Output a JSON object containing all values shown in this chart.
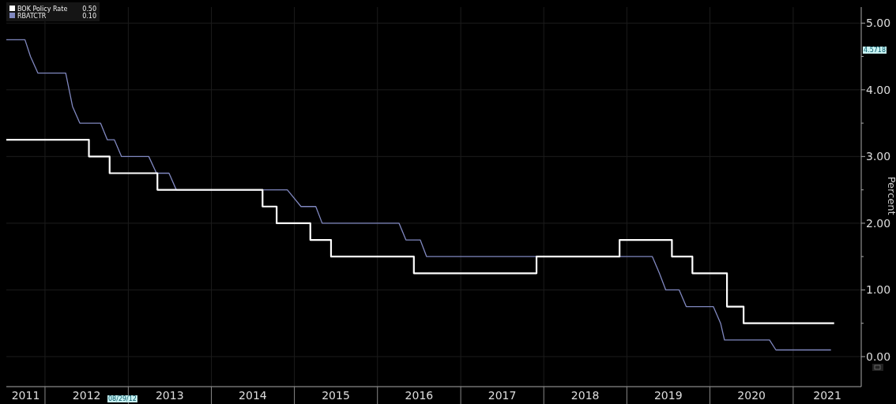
{
  "chart_data": {
    "type": "line",
    "ylabel": "Percent",
    "legend": "top left",
    "grid": true,
    "line_style": "solid",
    "xlim": [
      "2011-07-15",
      "2021-10-27"
    ],
    "xticks": [
      {
        "value": "2011-10-08",
        "label": "2011"
      },
      {
        "value": "2012-01-01",
        "label": null
      },
      {
        "value": "2012-07-02",
        "label": "2012"
      },
      {
        "value": "2013-01-01",
        "label": null
      },
      {
        "value": "2013-07-02",
        "label": "2013"
      },
      {
        "value": "2014-01-01",
        "label": null
      },
      {
        "value": "2014-07-02",
        "label": "2014"
      },
      {
        "value": "2015-01-01",
        "label": null
      },
      {
        "value": "2015-07-02",
        "label": "2015"
      },
      {
        "value": "2016-01-01",
        "label": null
      },
      {
        "value": "2016-07-02",
        "label": "2016"
      },
      {
        "value": "2017-01-01",
        "label": null
      },
      {
        "value": "2017-07-02",
        "label": "2017"
      },
      {
        "value": "2018-01-01",
        "label": null
      },
      {
        "value": "2018-07-02",
        "label": "2018"
      },
      {
        "value": "2019-01-01",
        "label": null
      },
      {
        "value": "2019-07-02",
        "label": "2019"
      },
      {
        "value": "2020-01-01",
        "label": null
      },
      {
        "value": "2020-07-02",
        "label": "2020"
      },
      {
        "value": "2021-01-01",
        "label": null
      },
      {
        "value": "2021-05-31",
        "label": "2021"
      }
    ],
    "ylim": [
      -0.45,
      5.24
    ],
    "yticks": [
      {
        "value": 0,
        "label": "0.00"
      },
      {
        "value": 0.5,
        "label": null
      },
      {
        "value": 1,
        "label": "1.00"
      },
      {
        "value": 1.5,
        "label": null
      },
      {
        "value": 2,
        "label": "2.00"
      },
      {
        "value": 2.5,
        "label": null
      },
      {
        "value": 3,
        "label": "3.00"
      },
      {
        "value": 3.5,
        "label": null
      },
      {
        "value": 4,
        "label": "4.00"
      },
      {
        "value": 4.5,
        "label": null
      },
      {
        "value": 5,
        "label": "5.00"
      }
    ],
    "annotations": [
      "08/29/12",
      "4.5718",
      "0.50",
      "0.10"
    ],
    "series": [
      {
        "name": "BOK Policy Rate",
        "type": "step",
        "color": "#ffffff",
        "x": [
          "2011-07-15",
          "2012-07-12",
          "2012-10-11",
          "2013-05-09",
          "2014-08-14",
          "2014-10-15",
          "2015-03-12",
          "2015-06-11",
          "2016-06-09",
          "2017-11-30",
          "2018-11-30",
          "2019-07-18",
          "2019-10-16",
          "2020-03-16",
          "2020-05-28",
          "2021-06-30"
        ],
        "values": [
          3.25,
          3.0,
          2.75,
          2.5,
          2.25,
          2.0,
          1.75,
          1.5,
          1.25,
          1.5,
          1.75,
          1.5,
          1.25,
          0.75,
          0.5,
          0.5
        ]
      },
      {
        "name": "RBATCTR",
        "type": "line",
        "color": "#8088c0",
        "x": [
          "2011-07-15",
          "2011-10-05",
          "2011-10-29",
          "2011-12-01",
          "2012-04-01",
          "2012-05-01",
          "2012-06-02",
          "2012-09-01",
          "2012-10-01",
          "2012-11-01",
          "2012-12-02",
          "2013-04-01",
          "2013-05-05",
          "2013-06-29",
          "2013-07-31",
          "2014-12-01",
          "2015-01-30",
          "2015-04-05",
          "2015-05-03",
          "2016-04-05",
          "2016-05-05",
          "2016-07-07",
          "2016-08-04",
          "2019-04-23",
          "2019-05-24",
          "2019-06-21",
          "2019-08-19",
          "2019-09-19",
          "2020-01-16",
          "2020-02-17",
          "2020-03-05",
          "2020-09-19",
          "2020-10-17",
          "2021-06-16"
        ],
        "values": [
          4.75,
          4.75,
          4.5,
          4.25,
          4.25,
          3.75,
          3.5,
          3.5,
          3.25,
          3.25,
          3.0,
          3.0,
          2.75,
          2.75,
          2.5,
          2.5,
          2.25,
          2.25,
          2.0,
          2.0,
          1.75,
          1.75,
          1.5,
          1.5,
          1.25,
          1.0,
          1.0,
          0.75,
          0.75,
          0.5,
          0.25,
          0.25,
          0.1,
          0.1
        ]
      }
    ]
  }
}
